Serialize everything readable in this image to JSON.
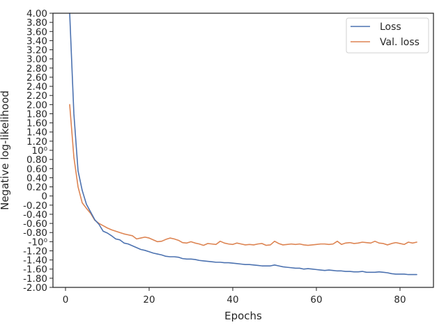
{
  "chart_data": {
    "type": "line",
    "xlabel": "Epochs",
    "ylabel": "Negative log-likelihood",
    "xlim": [
      -3,
      88
    ],
    "ylim": [
      -2.0,
      4.0
    ],
    "x_ticks": [
      0,
      20,
      40,
      60,
      80
    ],
    "y_tick_labels": [
      "4.00",
      "3.80",
      "3.60",
      "3.40",
      "3.20",
      "3.00",
      "2.80",
      "2.60",
      "2.40",
      "2.20",
      "2.00",
      "1.80",
      "1.60",
      "1.40",
      "1.20",
      "10⁰",
      "0.80",
      "0.60",
      "0.40",
      "0.20",
      "0",
      "-0.20",
      "-0.40",
      "-0.60",
      "-0.80",
      "-10⁰",
      "-1.20",
      "-1.40",
      "-1.60",
      "-1.80",
      "-2.00"
    ],
    "legend_position": "top-right",
    "grid": false,
    "x": [
      1,
      2,
      3,
      4,
      5,
      6,
      7,
      8,
      9,
      10,
      11,
      12,
      13,
      14,
      15,
      16,
      17,
      18,
      19,
      20,
      21,
      22,
      23,
      24,
      25,
      26,
      27,
      28,
      29,
      30,
      31,
      32,
      33,
      34,
      35,
      36,
      37,
      38,
      39,
      40,
      41,
      42,
      43,
      44,
      45,
      46,
      47,
      48,
      49,
      50,
      51,
      52,
      53,
      54,
      55,
      56,
      57,
      58,
      59,
      60,
      61,
      62,
      63,
      64,
      65,
      66,
      67,
      68,
      69,
      70,
      71,
      72,
      73,
      74,
      75,
      76,
      77,
      78,
      79,
      80,
      81,
      82,
      83,
      84
    ],
    "series": [
      {
        "name": "Loss",
        "color": "#4c72b0",
        "values": [
          4.0,
          1.8,
          0.55,
          0.12,
          -0.18,
          -0.35,
          -0.52,
          -0.62,
          -0.77,
          -0.81,
          -0.87,
          -0.94,
          -0.96,
          -1.03,
          -1.05,
          -1.09,
          -1.13,
          -1.17,
          -1.19,
          -1.22,
          -1.25,
          -1.27,
          -1.29,
          -1.32,
          -1.33,
          -1.33,
          -1.34,
          -1.37,
          -1.38,
          -1.38,
          -1.39,
          -1.41,
          -1.42,
          -1.43,
          -1.44,
          -1.45,
          -1.45,
          -1.46,
          -1.46,
          -1.47,
          -1.48,
          -1.49,
          -1.5,
          -1.5,
          -1.51,
          -1.52,
          -1.53,
          -1.53,
          -1.53,
          -1.51,
          -1.53,
          -1.55,
          -1.56,
          -1.57,
          -1.58,
          -1.58,
          -1.6,
          -1.59,
          -1.6,
          -1.61,
          -1.62,
          -1.63,
          -1.62,
          -1.63,
          -1.64,
          -1.64,
          -1.65,
          -1.65,
          -1.66,
          -1.66,
          -1.65,
          -1.67,
          -1.67,
          -1.67,
          -1.66,
          -1.67,
          -1.68,
          -1.7,
          -1.71,
          -1.71,
          -1.71,
          -1.72,
          -1.72,
          -1.72
        ]
      },
      {
        "name": "Val. loss",
        "color": "#dd8452",
        "values": [
          2.0,
          0.85,
          0.2,
          -0.15,
          -0.27,
          -0.38,
          -0.53,
          -0.6,
          -0.65,
          -0.7,
          -0.74,
          -0.77,
          -0.8,
          -0.83,
          -0.85,
          -0.87,
          -0.94,
          -0.92,
          -0.9,
          -0.92,
          -0.96,
          -1.0,
          -0.99,
          -0.95,
          -0.92,
          -0.94,
          -0.97,
          -1.02,
          -1.03,
          -1.0,
          -1.03,
          -1.05,
          -1.08,
          -1.04,
          -1.05,
          -1.06,
          -0.99,
          -1.03,
          -1.05,
          -1.06,
          -1.03,
          -1.05,
          -1.07,
          -1.06,
          -1.07,
          -1.05,
          -1.04,
          -1.08,
          -1.07,
          -0.99,
          -1.04,
          -1.07,
          -1.06,
          -1.05,
          -1.06,
          -1.05,
          -1.07,
          -1.08,
          -1.07,
          -1.06,
          -1.05,
          -1.05,
          -1.06,
          -1.05,
          -0.99,
          -1.06,
          -1.03,
          -1.02,
          -1.04,
          -1.03,
          -1.01,
          -1.02,
          -1.03,
          -0.99,
          -1.03,
          -1.04,
          -1.07,
          -1.04,
          -1.02,
          -1.04,
          -1.06,
          -1.01,
          -1.03,
          -1.01
        ]
      }
    ]
  }
}
